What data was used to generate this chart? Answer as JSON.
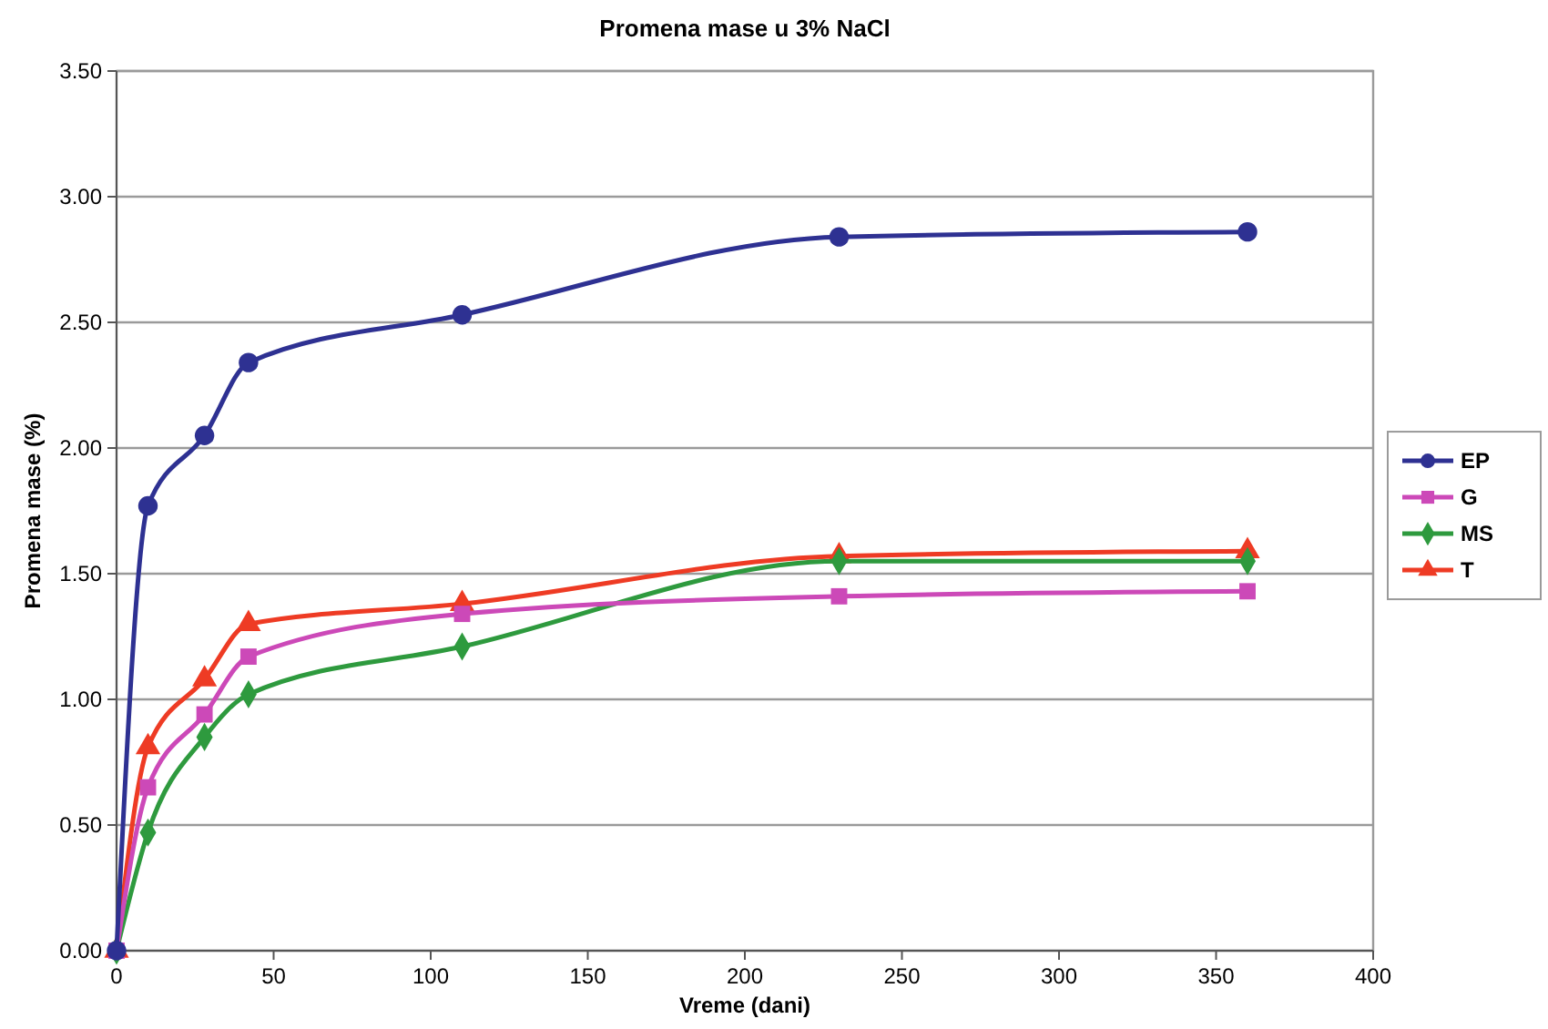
{
  "chart_data": {
    "type": "line",
    "title": "Promena mase u 3% NaCl",
    "xlabel": "Vreme (dani)",
    "ylabel": "Promena mase (%)",
    "x": [
      0,
      10,
      28,
      42,
      110,
      230,
      360
    ],
    "series": [
      {
        "name": "EP",
        "color": "#2e3192",
        "marker": "circle",
        "values": [
          0,
          1.77,
          2.05,
          2.34,
          2.53,
          2.84,
          2.86
        ]
      },
      {
        "name": "G",
        "color": "#cc49b8",
        "marker": "square",
        "values": [
          0,
          0.65,
          0.94,
          1.17,
          1.34,
          1.41,
          1.43
        ]
      },
      {
        "name": "MS",
        "color": "#2e9a3e",
        "marker": "diamond",
        "values": [
          0,
          0.47,
          0.85,
          1.02,
          1.21,
          1.55,
          1.55
        ]
      },
      {
        "name": "T",
        "color": "#ee3b24",
        "marker": "triangle",
        "values": [
          0,
          0.81,
          1.08,
          1.3,
          1.38,
          1.57,
          1.59
        ]
      }
    ],
    "xlim": [
      0,
      400
    ],
    "xticks": [
      0,
      50,
      100,
      150,
      200,
      250,
      300,
      350,
      400
    ],
    "ylim": [
      0,
      3.5
    ],
    "yticks": [
      {
        "value": 0,
        "label": "0.00"
      },
      {
        "value": 0.5,
        "label": "0.50"
      },
      {
        "value": 1,
        "label": "1.00"
      },
      {
        "value": 1.5,
        "label": "1.50"
      },
      {
        "value": 2,
        "label": "2.00"
      },
      {
        "value": 2.5,
        "label": "2.50"
      },
      {
        "value": 3,
        "label": "3.00"
      },
      {
        "value": 3.5,
        "label": "3.50"
      }
    ],
    "grid": "y",
    "legend": "right"
  }
}
